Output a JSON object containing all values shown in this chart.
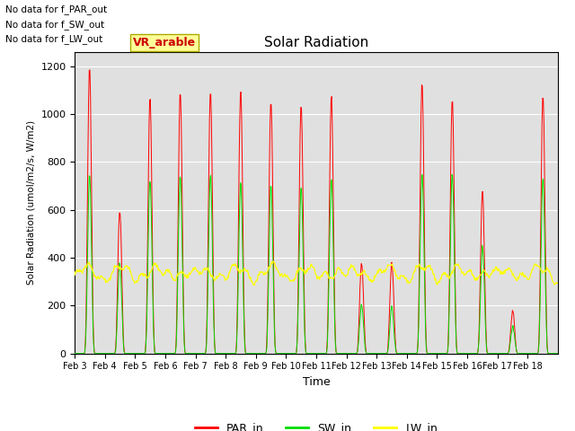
{
  "title": "Solar Radiation",
  "ylabel": "Solar Radiation (umol/m2/s, W/m2)",
  "xlabel": "Time",
  "ylim": [
    0,
    1260
  ],
  "background_color": "#e0e0e0",
  "top_left_texts": [
    "No data for f_PAR_out",
    "No data for f_SW_out",
    "No data for f_LW_out"
  ],
  "annotation_text": "VR_arable",
  "annotation_box_color": "#ffff99",
  "annotation_box_edgecolor": "#aaaa00",
  "annotation_text_color": "#cc0000",
  "xtick_labels": [
    "Feb 3",
    "Feb 4",
    "Feb 5",
    "Feb 6",
    "Feb 7",
    "Feb 8",
    "Feb 9",
    "Feb 10",
    "Feb 11",
    "Feb 12",
    "Feb 13",
    "Feb 14",
    "Feb 15",
    "Feb 16",
    "Feb 17",
    "Feb 18"
  ],
  "line_colors": {
    "PAR_in": "#ff0000",
    "SW_in": "#00dd00",
    "LW_in": "#ffff00"
  },
  "legend_labels": [
    "PAR_in",
    "SW_in",
    "LW_in"
  ],
  "par_peaks": [
    1200,
    600,
    1070,
    1100,
    1100,
    1100,
    1060,
    1040,
    1080,
    380,
    380,
    1130,
    1070,
    680,
    180,
    1080
  ],
  "sw_peaks": [
    750,
    380,
    730,
    750,
    750,
    720,
    700,
    700,
    730,
    200,
    195,
    760,
    750,
    450,
    110,
    730
  ],
  "lw_base": 320,
  "lw_amplitude": 30
}
